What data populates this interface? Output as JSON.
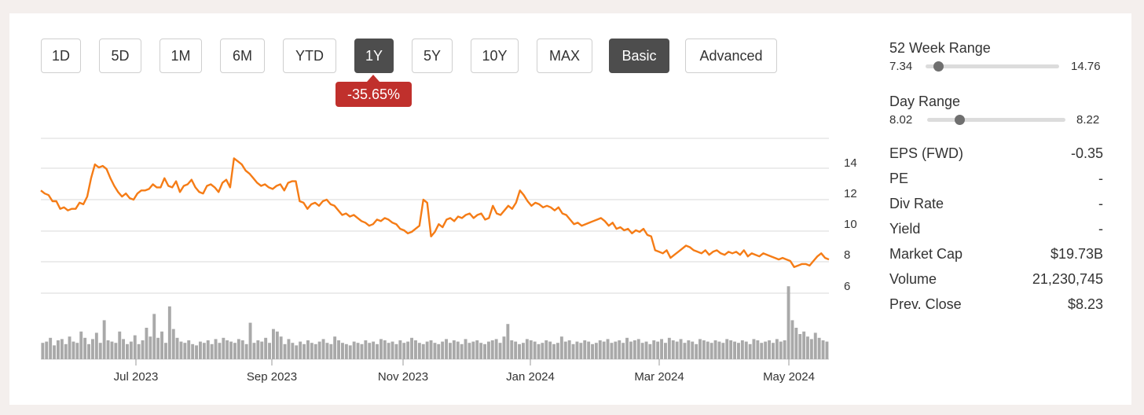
{
  "toolbar": {
    "buttons": [
      {
        "label": "1D"
      },
      {
        "label": "5D"
      },
      {
        "label": "1M"
      },
      {
        "label": "6M"
      },
      {
        "label": "YTD"
      },
      {
        "label": "1Y"
      },
      {
        "label": "5Y"
      },
      {
        "label": "10Y"
      },
      {
        "label": "MAX"
      },
      {
        "label": "Basic"
      },
      {
        "label": "Advanced"
      }
    ],
    "active_period": "1Y",
    "active_mode": "Basic"
  },
  "change_badge": "-35.65%",
  "colors": {
    "line": "#f57c16",
    "badge": "#c0302c",
    "active": "#4d4d4d",
    "volume": "#a9a9a9"
  },
  "chart_data": {
    "type": "line",
    "x_tick_labels": [
      "Jul 2023",
      "Sep 2023",
      "Nov 2023",
      "Jan 2024",
      "Mar 2024",
      "May 2024"
    ],
    "y_tick_labels": [
      "14",
      "12",
      "10",
      "8",
      "6"
    ],
    "ylim": [
      5.7,
      15.8
    ],
    "grid": true,
    "price_series": [
      12.4,
      12.2,
      12.1,
      11.7,
      11.7,
      11.2,
      11.3,
      11.1,
      11.2,
      11.2,
      11.6,
      11.5,
      12.0,
      13.2,
      14.1,
      13.9,
      14.0,
      13.8,
      13.2,
      12.7,
      12.3,
      12.0,
      12.2,
      11.9,
      11.8,
      12.2,
      12.4,
      12.4,
      12.5,
      12.8,
      12.6,
      12.6,
      13.2,
      12.7,
      12.6,
      13.0,
      12.3,
      12.7,
      12.8,
      13.1,
      12.6,
      12.3,
      12.2,
      12.7,
      12.8,
      12.6,
      12.3,
      12.9,
      13.1,
      12.6,
      14.5,
      14.3,
      14.1,
      13.7,
      13.5,
      13.2,
      12.9,
      12.7,
      12.8,
      12.6,
      12.5,
      12.7,
      12.8,
      12.4,
      12.9,
      13.0,
      13.0,
      11.7,
      11.6,
      11.2,
      11.5,
      11.6,
      11.4,
      11.7,
      11.8,
      11.5,
      11.4,
      11.1,
      10.8,
      10.9,
      10.7,
      10.8,
      10.6,
      10.4,
      10.3,
      10.1,
      10.2,
      10.5,
      10.4,
      10.6,
      10.5,
      10.3,
      10.2,
      9.9,
      9.8,
      9.6,
      9.7,
      9.9,
      10.1,
      11.8,
      11.6,
      9.4,
      9.7,
      10.2,
      10.0,
      10.5,
      10.6,
      10.4,
      10.7,
      10.6,
      10.8,
      10.9,
      10.6,
      10.8,
      10.9,
      10.5,
      10.6,
      11.4,
      10.9,
      10.8,
      11.1,
      11.4,
      11.2,
      11.6,
      12.4,
      12.1,
      11.7,
      11.4,
      11.6,
      11.5,
      11.3,
      11.4,
      11.3,
      11.1,
      11.3,
      10.9,
      10.8,
      10.5,
      10.2,
      10.3,
      10.1,
      10.2,
      10.3,
      10.4,
      10.5,
      10.6,
      10.4,
      10.1,
      10.3,
      9.9,
      10.0,
      9.8,
      9.9,
      9.6,
      9.8,
      9.7,
      9.9,
      9.5,
      9.4,
      8.5,
      8.4,
      8.3,
      8.5,
      8.0,
      8.2,
      8.4,
      8.6,
      8.8,
      8.7,
      8.5,
      8.4,
      8.3,
      8.5,
      8.2,
      8.4,
      8.5,
      8.3,
      8.2,
      8.4,
      8.3,
      8.4,
      8.2,
      8.5,
      8.1,
      8.3,
      8.2,
      8.1,
      8.3,
      8.2,
      8.1,
      8.0,
      7.9,
      8.0,
      7.9,
      7.8,
      7.4,
      7.5,
      7.6,
      7.6,
      7.5,
      7.8,
      8.1,
      8.3,
      8.0,
      7.9
    ],
    "volume_series": [
      0.13,
      0.14,
      0.17,
      0.11,
      0.15,
      0.16,
      0.12,
      0.18,
      0.14,
      0.13,
      0.22,
      0.17,
      0.12,
      0.16,
      0.21,
      0.13,
      0.31,
      0.15,
      0.14,
      0.13,
      0.22,
      0.16,
      0.12,
      0.14,
      0.19,
      0.12,
      0.15,
      0.25,
      0.18,
      0.36,
      0.17,
      0.22,
      0.13,
      0.42,
      0.24,
      0.17,
      0.14,
      0.13,
      0.15,
      0.12,
      0.11,
      0.14,
      0.13,
      0.15,
      0.12,
      0.16,
      0.13,
      0.17,
      0.15,
      0.14,
      0.13,
      0.16,
      0.15,
      0.12,
      0.29,
      0.13,
      0.15,
      0.14,
      0.17,
      0.13,
      0.24,
      0.22,
      0.18,
      0.12,
      0.16,
      0.13,
      0.11,
      0.14,
      0.12,
      0.15,
      0.13,
      0.12,
      0.14,
      0.16,
      0.13,
      0.12,
      0.18,
      0.15,
      0.13,
      0.12,
      0.11,
      0.14,
      0.13,
      0.12,
      0.15,
      0.13,
      0.14,
      0.12,
      0.16,
      0.15,
      0.13,
      0.14,
      0.12,
      0.15,
      0.13,
      0.14,
      0.17,
      0.15,
      0.13,
      0.12,
      0.14,
      0.15,
      0.13,
      0.12,
      0.14,
      0.16,
      0.13,
      0.15,
      0.14,
      0.12,
      0.16,
      0.13,
      0.14,
      0.15,
      0.13,
      0.12,
      0.14,
      0.15,
      0.16,
      0.13,
      0.18,
      0.28,
      0.15,
      0.14,
      0.12,
      0.13,
      0.16,
      0.15,
      0.14,
      0.12,
      0.13,
      0.15,
      0.14,
      0.12,
      0.13,
      0.18,
      0.14,
      0.15,
      0.12,
      0.14,
      0.13,
      0.15,
      0.14,
      0.12,
      0.13,
      0.15,
      0.14,
      0.16,
      0.13,
      0.14,
      0.15,
      0.13,
      0.17,
      0.14,
      0.15,
      0.16,
      0.13,
      0.14,
      0.12,
      0.15,
      0.14,
      0.16,
      0.13,
      0.17,
      0.15,
      0.14,
      0.16,
      0.13,
      0.15,
      0.14,
      0.12,
      0.16,
      0.15,
      0.14,
      0.13,
      0.15,
      0.14,
      0.13,
      0.16,
      0.15,
      0.14,
      0.13,
      0.15,
      0.14,
      0.12,
      0.16,
      0.15,
      0.13,
      0.14,
      0.15,
      0.13,
      0.16,
      0.14,
      0.15,
      0.58,
      0.31,
      0.25,
      0.2,
      0.22,
      0.18,
      0.16,
      0.21,
      0.17,
      0.15,
      0.14
    ]
  },
  "side": {
    "week52": {
      "label": "52 Week Range",
      "low": "7.34",
      "high": "14.76",
      "fraction": 0.06
    },
    "day": {
      "label": "Day Range",
      "low": "8.02",
      "high": "8.22",
      "fraction": 0.2
    },
    "stats": [
      {
        "label": "EPS (FWD)",
        "value": "-0.35"
      },
      {
        "label": "PE",
        "value": "-"
      },
      {
        "label": "Div Rate",
        "value": "-"
      },
      {
        "label": "Yield",
        "value": "-"
      },
      {
        "label": "Market Cap",
        "value": "$19.73B"
      },
      {
        "label": "Volume",
        "value": "21,230,745"
      },
      {
        "label": "Prev. Close",
        "value": "$8.23"
      }
    ]
  }
}
